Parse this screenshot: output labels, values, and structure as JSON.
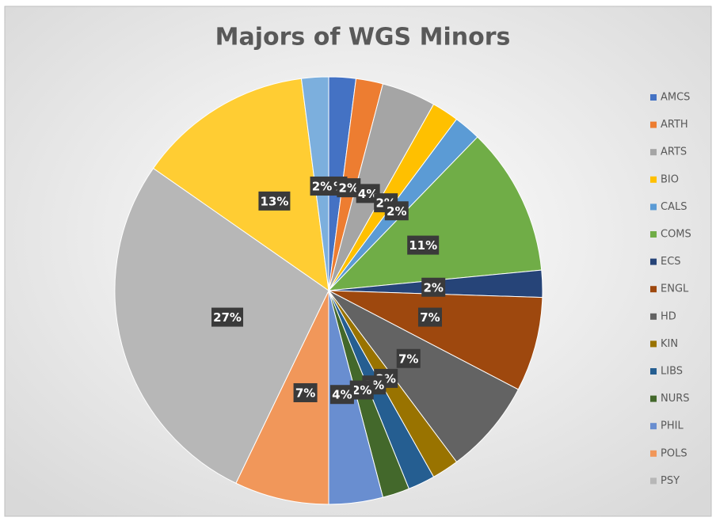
{
  "chart_data": {
    "type": "pie",
    "title": "Majors of WGS Minors",
    "categories": [
      "AMCS",
      "ARTH",
      "ARTS",
      "BIO",
      "CALS",
      "COMS",
      "ECS",
      "ENGL",
      "HD",
      "KIN",
      "LIBS",
      "NURS",
      "PHIL",
      "POLS",
      "PSY",
      null,
      null
    ],
    "values": [
      2,
      2,
      4,
      2,
      2,
      11,
      2,
      7,
      7,
      2,
      2,
      2,
      4,
      7,
      27,
      13,
      2
    ],
    "value_labels": [
      "2%",
      "2%",
      "4%",
      "2%",
      "2%",
      "11%",
      "2%",
      "7%",
      "7%",
      "2%",
      "2%",
      "2%",
      "4%",
      "7%",
      "27%",
      "13%",
      "2%"
    ],
    "colors": [
      "#4472c4",
      "#ed7d31",
      "#a5a5a5",
      "#ffc000",
      "#5b9bd5",
      "#70ad47",
      "#264478",
      "#9e480e",
      "#636363",
      "#997300",
      "#255e91",
      "#43682b",
      "#698ed0",
      "#f1975a",
      "#b7b7b7",
      "#ffcd33",
      "#7cafdd"
    ],
    "legend": "right"
  }
}
